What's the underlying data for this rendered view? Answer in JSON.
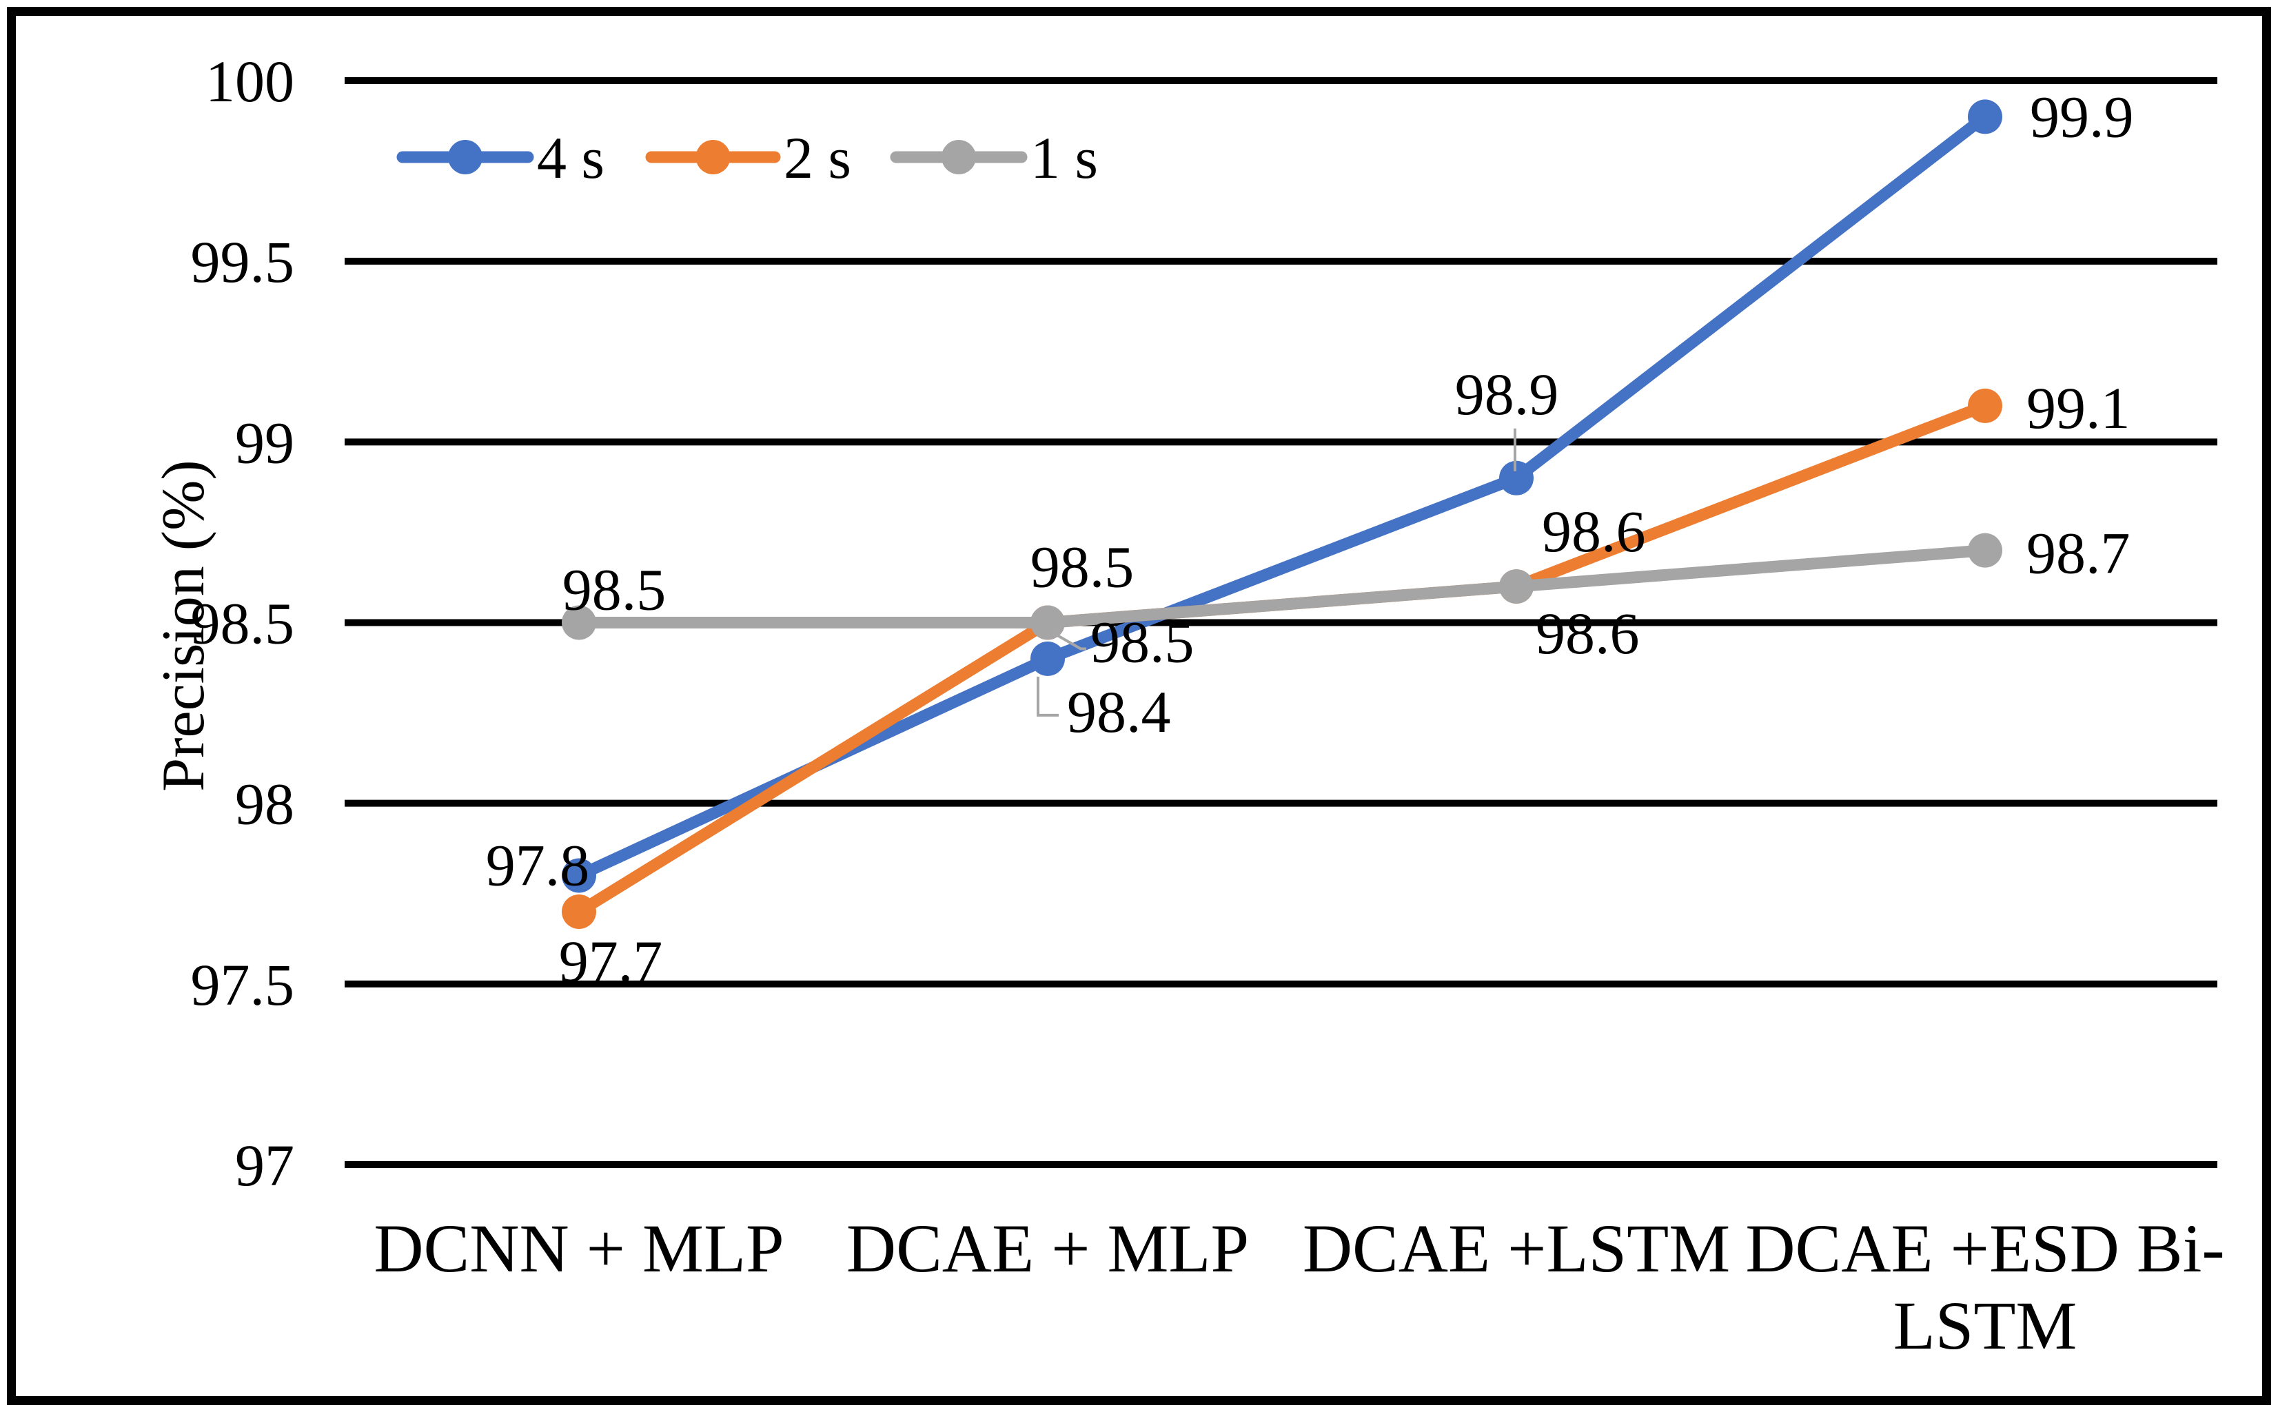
{
  "chart_data": {
    "type": "line",
    "title": "",
    "ylabel": "Precision (%)",
    "xlabel": "",
    "ylim": [
      97,
      100
    ],
    "ytick_interval": 0.5,
    "yticks": [
      "100",
      "99.5",
      "99",
      "98.5",
      "98",
      "97.5",
      "97"
    ],
    "categories": [
      "DCNN + MLP",
      "DCAE + MLP",
      "DCAE +LSTM",
      "DCAE +ESD Bi-LSTM"
    ],
    "categories_display": [
      [
        "DCNN + MLP"
      ],
      [
        "DCAE + MLP"
      ],
      [
        "DCAE +LSTM"
      ],
      [
        "DCAE +ESD Bi-",
        "LSTM"
      ]
    ],
    "grid": "horizontal-only",
    "legend": {
      "position": "top-left-inside",
      "items": [
        "4 s",
        "2 s",
        "1 s"
      ]
    },
    "series": [
      {
        "name": "4 s",
        "color": "#4472C4",
        "values": [
          97.8,
          98.4,
          98.9,
          99.9
        ],
        "labels": [
          "97.8",
          "98.4",
          "98.9",
          "99.9"
        ]
      },
      {
        "name": "2 s",
        "color": "#ED7D31",
        "values": [
          97.7,
          98.5,
          98.6,
          99.1
        ],
        "labels": [
          "97.7",
          "98.5",
          "98.6",
          "99.1"
        ]
      },
      {
        "name": "1 s",
        "color": "#A5A5A5",
        "values": [
          98.5,
          98.5,
          98.6,
          98.7
        ],
        "labels": [
          "98.5",
          "98.5",
          "98.6",
          "98.7"
        ]
      }
    ],
    "colors": {
      "gridline": "#000000",
      "frame_border": "#000000",
      "leader_line": "#A6A6A6",
      "background": "#FFFFFF",
      "text": "#000000"
    },
    "data_labels_shown": true
  }
}
